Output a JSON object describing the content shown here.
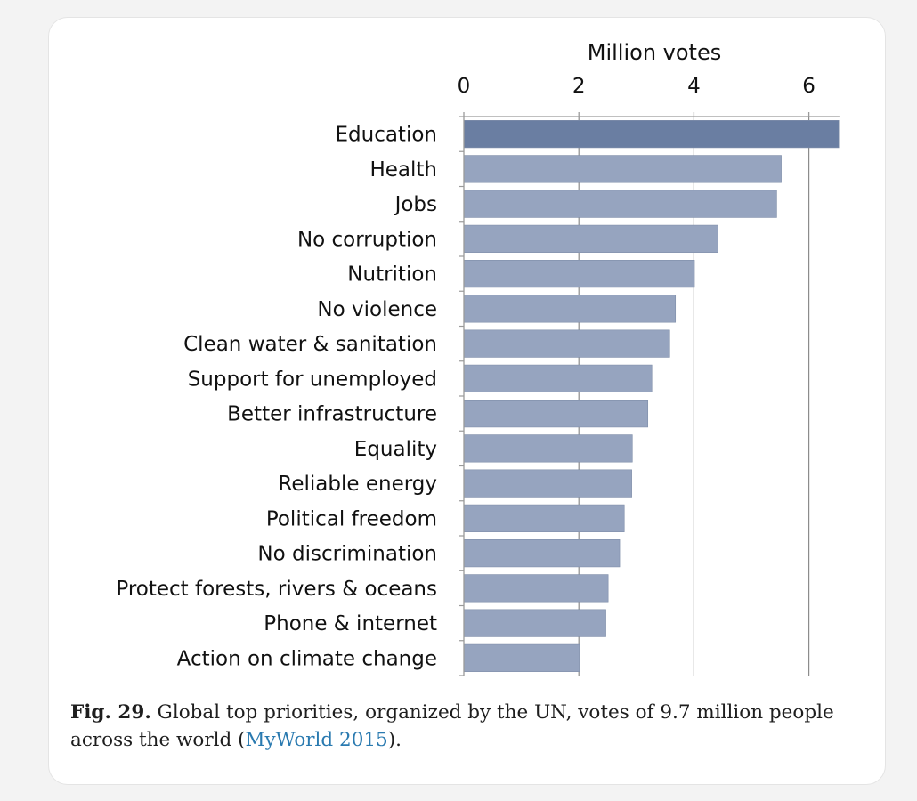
{
  "chart_data": {
    "type": "bar",
    "orientation": "horizontal",
    "title": "",
    "xlabel": "Million votes",
    "ylabel": "",
    "xlim": [
      0,
      6.5
    ],
    "xticks": [
      0,
      2,
      4,
      6
    ],
    "x_axis_position": "top",
    "grid": true,
    "categories": [
      "Education",
      "Health",
      "Jobs",
      "No corruption",
      "Nutrition",
      "No violence",
      "Clean water & sanitation",
      "Support for unemployed",
      "Better infrastructure",
      "Equality",
      "Reliable energy",
      "Political freedom",
      "No discrimination",
      "Protect forests, rivers & oceans",
      "Phone & internet",
      "Action on climate change"
    ],
    "values": [
      6.52,
      5.52,
      5.44,
      4.42,
      4.01,
      3.68,
      3.58,
      3.27,
      3.2,
      2.93,
      2.92,
      2.79,
      2.71,
      2.51,
      2.47,
      2.01
    ],
    "colors": {
      "highlight": "#6a7ea2",
      "bar": "#96a4bf",
      "grid": "#8c8c8c"
    }
  },
  "caption": {
    "label": "Fig. 29.",
    "text_before": " Global top priorities, organized by the UN, votes of 9.7 million people across the world (",
    "reference": "MyWorld 2015",
    "text_after": ")."
  }
}
